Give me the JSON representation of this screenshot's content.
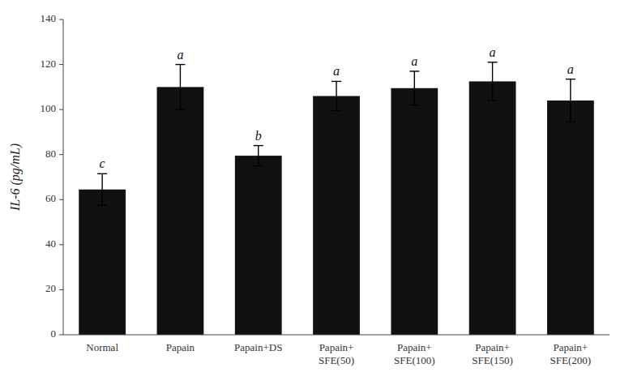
{
  "chart_data": {
    "type": "bar",
    "y_label": "IL-6 (pg/mL)",
    "categories": [
      "Normal",
      "Papain",
      "Papain+DS",
      "Papain+\nSFE(50)",
      "Papain+\nSFE(100)",
      "Papain+\nSFE(150)",
      "Papain+\nSFE(200)"
    ],
    "values": [
      64.5,
      110.0,
      79.5,
      106.0,
      109.5,
      112.5,
      104.0
    ],
    "errors": [
      7.0,
      10.0,
      4.5,
      6.5,
      7.5,
      8.5,
      9.5
    ],
    "significance": [
      "c",
      "a",
      "b",
      "a",
      "a",
      "a",
      "a"
    ],
    "color": "#111111",
    "ylim": [
      0,
      140
    ],
    "yticks": [
      0,
      20,
      40,
      60,
      80,
      100,
      120,
      140
    ],
    "grid": false
  }
}
